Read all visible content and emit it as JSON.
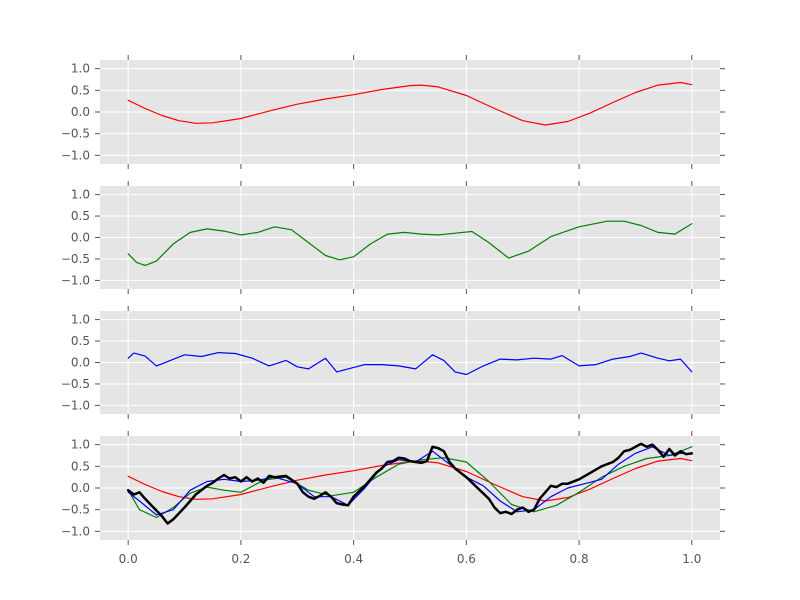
{
  "chart_data": [
    {
      "type": "line",
      "title": "",
      "xlabel": "",
      "ylabel": "",
      "xlim": [
        -0.05,
        1.05
      ],
      "ylim": [
        -1.2,
        1.2
      ],
      "xticks": [
        0.0,
        0.2,
        0.4,
        0.6,
        0.8,
        1.0
      ],
      "yticks": [
        1.0,
        0.5,
        0.0,
        -0.5,
        -1.0
      ],
      "ytick_labels": [
        "1.0",
        "0.5",
        "0.0",
        "−0.5",
        "−1.0"
      ],
      "grid": true,
      "show_xtick_labels": false,
      "series": [
        {
          "color": "#ff0000",
          "x": [
            0.0,
            0.03,
            0.06,
            0.09,
            0.12,
            0.15,
            0.2,
            0.25,
            0.3,
            0.35,
            0.4,
            0.45,
            0.5,
            0.52,
            0.55,
            0.6,
            0.65,
            0.7,
            0.74,
            0.78,
            0.82,
            0.86,
            0.9,
            0.94,
            0.98,
            1.0
          ],
          "y": [
            0.27,
            0.08,
            -0.08,
            -0.2,
            -0.26,
            -0.25,
            -0.15,
            0.02,
            0.18,
            0.3,
            0.4,
            0.52,
            0.61,
            0.62,
            0.58,
            0.38,
            0.08,
            -0.2,
            -0.3,
            -0.22,
            -0.02,
            0.22,
            0.45,
            0.62,
            0.68,
            0.63
          ]
        }
      ]
    },
    {
      "type": "line",
      "title": "",
      "xlabel": "",
      "ylabel": "",
      "xlim": [
        -0.05,
        1.05
      ],
      "ylim": [
        -1.2,
        1.2
      ],
      "xticks": [
        0.0,
        0.2,
        0.4,
        0.6,
        0.8,
        1.0
      ],
      "yticks": [
        1.0,
        0.5,
        0.0,
        -0.5,
        -1.0
      ],
      "ytick_labels": [
        "1.0",
        "0.5",
        "0.0",
        "−0.5",
        "−1.0"
      ],
      "grid": true,
      "show_xtick_labels": false,
      "series": [
        {
          "color": "#008000",
          "x": [
            0.0,
            0.015,
            0.03,
            0.05,
            0.08,
            0.11,
            0.14,
            0.17,
            0.2,
            0.23,
            0.26,
            0.29,
            0.32,
            0.35,
            0.375,
            0.4,
            0.43,
            0.46,
            0.49,
            0.52,
            0.55,
            0.58,
            0.61,
            0.64,
            0.675,
            0.71,
            0.75,
            0.8,
            0.85,
            0.88,
            0.91,
            0.94,
            0.97,
            1.0
          ],
          "y": [
            -0.38,
            -0.58,
            -0.65,
            -0.55,
            -0.15,
            0.12,
            0.2,
            0.15,
            0.06,
            0.12,
            0.25,
            0.18,
            -0.12,
            -0.42,
            -0.52,
            -0.45,
            -0.15,
            0.08,
            0.12,
            0.08,
            0.06,
            0.1,
            0.14,
            -0.12,
            -0.48,
            -0.32,
            0.02,
            0.25,
            0.38,
            0.38,
            0.28,
            0.12,
            0.08,
            0.32
          ]
        }
      ]
    },
    {
      "type": "line",
      "title": "",
      "xlabel": "",
      "ylabel": "",
      "xlim": [
        -0.05,
        1.05
      ],
      "ylim": [
        -1.2,
        1.2
      ],
      "xticks": [
        0.0,
        0.2,
        0.4,
        0.6,
        0.8,
        1.0
      ],
      "yticks": [
        1.0,
        0.5,
        0.0,
        -0.5,
        -1.0
      ],
      "ytick_labels": [
        "1.0",
        "0.5",
        "0.0",
        "−0.5",
        "−1.0"
      ],
      "grid": true,
      "show_xtick_labels": false,
      "series": [
        {
          "color": "#0000ff",
          "x": [
            0.0,
            0.01,
            0.03,
            0.05,
            0.07,
            0.1,
            0.13,
            0.16,
            0.19,
            0.22,
            0.25,
            0.28,
            0.3,
            0.32,
            0.35,
            0.37,
            0.39,
            0.42,
            0.45,
            0.48,
            0.51,
            0.54,
            0.56,
            0.58,
            0.6,
            0.63,
            0.66,
            0.69,
            0.72,
            0.75,
            0.77,
            0.8,
            0.83,
            0.86,
            0.89,
            0.91,
            0.94,
            0.96,
            0.98,
            1.0
          ],
          "y": [
            0.1,
            0.22,
            0.15,
            -0.08,
            0.02,
            0.18,
            0.14,
            0.23,
            0.21,
            0.1,
            -0.08,
            0.05,
            -0.1,
            -0.15,
            0.1,
            -0.22,
            -0.15,
            -0.05,
            -0.05,
            -0.08,
            -0.15,
            0.18,
            0.05,
            -0.22,
            -0.28,
            -0.08,
            0.08,
            0.06,
            0.1,
            0.08,
            0.16,
            -0.08,
            -0.05,
            0.08,
            0.14,
            0.22,
            0.1,
            0.04,
            0.08,
            -0.22
          ]
        }
      ]
    },
    {
      "type": "line",
      "title": "",
      "xlabel": "",
      "ylabel": "",
      "xlim": [
        -0.05,
        1.05
      ],
      "ylim": [
        -1.2,
        1.2
      ],
      "xticks": [
        0.0,
        0.2,
        0.4,
        0.6,
        0.8,
        1.0
      ],
      "xtick_labels": [
        "0.0",
        "0.2",
        "0.4",
        "0.6",
        "0.8",
        "1.0"
      ],
      "yticks": [
        1.0,
        0.5,
        0.0,
        -0.5,
        -1.0
      ],
      "ytick_labels": [
        "1.0",
        "0.5",
        "0.0",
        "−0.5",
        "−1.0"
      ],
      "grid": true,
      "show_xtick_labels": true,
      "series": [
        {
          "color": "#ff0000",
          "x": [
            0.0,
            0.03,
            0.06,
            0.09,
            0.12,
            0.15,
            0.2,
            0.25,
            0.3,
            0.35,
            0.4,
            0.45,
            0.5,
            0.52,
            0.55,
            0.6,
            0.65,
            0.7,
            0.74,
            0.78,
            0.82,
            0.86,
            0.9,
            0.94,
            0.98,
            1.0
          ],
          "y": [
            0.27,
            0.08,
            -0.08,
            -0.2,
            -0.26,
            -0.25,
            -0.15,
            0.02,
            0.18,
            0.3,
            0.4,
            0.52,
            0.61,
            0.62,
            0.58,
            0.38,
            0.08,
            -0.2,
            -0.3,
            -0.22,
            -0.02,
            0.22,
            0.45,
            0.62,
            0.68,
            0.63
          ]
        },
        {
          "color": "#008000",
          "x": [
            0.0,
            0.02,
            0.05,
            0.08,
            0.11,
            0.14,
            0.17,
            0.2,
            0.24,
            0.28,
            0.32,
            0.36,
            0.4,
            0.44,
            0.48,
            0.52,
            0.56,
            0.6,
            0.64,
            0.68,
            0.72,
            0.76,
            0.8,
            0.84,
            0.88,
            0.92,
            0.96,
            1.0
          ],
          "y": [
            -0.05,
            -0.5,
            -0.68,
            -0.45,
            -0.12,
            0.02,
            -0.05,
            -0.1,
            0.18,
            0.25,
            -0.05,
            -0.18,
            -0.1,
            0.25,
            0.55,
            0.65,
            0.7,
            0.6,
            0.15,
            -0.38,
            -0.55,
            -0.4,
            -0.1,
            0.25,
            0.5,
            0.68,
            0.75,
            0.95
          ]
        },
        {
          "color": "#0000ff",
          "x": [
            0.0,
            0.02,
            0.05,
            0.08,
            0.11,
            0.14,
            0.17,
            0.2,
            0.23,
            0.26,
            0.3,
            0.33,
            0.36,
            0.39,
            0.42,
            0.45,
            0.48,
            0.51,
            0.54,
            0.57,
            0.6,
            0.63,
            0.66,
            0.69,
            0.72,
            0.75,
            0.78,
            0.81,
            0.84,
            0.87,
            0.9,
            0.93,
            0.96,
            0.98,
            1.0
          ],
          "y": [
            -0.1,
            -0.3,
            -0.62,
            -0.5,
            -0.05,
            0.15,
            0.2,
            0.15,
            0.18,
            0.25,
            0.1,
            -0.2,
            -0.2,
            -0.4,
            0.0,
            0.48,
            0.65,
            0.6,
            0.85,
            0.55,
            0.25,
            0.05,
            -0.3,
            -0.55,
            -0.5,
            -0.2,
            0.0,
            0.1,
            0.2,
            0.55,
            0.8,
            0.95,
            0.75,
            0.8,
            0.78
          ]
        },
        {
          "color": "#000000",
          "x": [
            0.0,
            0.01,
            0.02,
            0.03,
            0.045,
            0.06,
            0.07,
            0.08,
            0.1,
            0.12,
            0.14,
            0.15,
            0.16,
            0.17,
            0.18,
            0.19,
            0.2,
            0.21,
            0.22,
            0.23,
            0.24,
            0.25,
            0.26,
            0.28,
            0.3,
            0.31,
            0.32,
            0.33,
            0.34,
            0.35,
            0.36,
            0.37,
            0.38,
            0.39,
            0.4,
            0.42,
            0.44,
            0.45,
            0.46,
            0.47,
            0.48,
            0.49,
            0.5,
            0.51,
            0.52,
            0.53,
            0.54,
            0.55,
            0.56,
            0.57,
            0.58,
            0.6,
            0.62,
            0.64,
            0.65,
            0.66,
            0.67,
            0.68,
            0.69,
            0.7,
            0.71,
            0.72,
            0.73,
            0.74,
            0.75,
            0.76,
            0.77,
            0.78,
            0.8,
            0.82,
            0.84,
            0.86,
            0.87,
            0.88,
            0.89,
            0.9,
            0.91,
            0.92,
            0.93,
            0.94,
            0.95,
            0.96,
            0.97,
            0.98,
            0.99,
            1.0
          ],
          "y": [
            -0.05,
            -0.15,
            -0.1,
            -0.25,
            -0.45,
            -0.65,
            -0.82,
            -0.72,
            -0.45,
            -0.15,
            0.05,
            0.12,
            0.22,
            0.3,
            0.22,
            0.25,
            0.15,
            0.25,
            0.15,
            0.22,
            0.12,
            0.28,
            0.25,
            0.28,
            0.1,
            -0.1,
            -0.2,
            -0.25,
            -0.18,
            -0.1,
            -0.2,
            -0.35,
            -0.38,
            -0.4,
            -0.2,
            0.05,
            0.35,
            0.45,
            0.6,
            0.62,
            0.7,
            0.68,
            0.62,
            0.6,
            0.58,
            0.62,
            0.95,
            0.92,
            0.85,
            0.6,
            0.45,
            0.25,
            0.0,
            -0.25,
            -0.45,
            -0.58,
            -0.55,
            -0.6,
            -0.5,
            -0.45,
            -0.55,
            -0.5,
            -0.25,
            -0.1,
            0.05,
            0.02,
            0.1,
            0.1,
            0.2,
            0.35,
            0.5,
            0.6,
            0.7,
            0.85,
            0.88,
            0.95,
            1.02,
            0.95,
            1.0,
            0.88,
            0.72,
            0.9,
            0.75,
            0.85,
            0.78,
            0.8
          ]
        }
      ]
    }
  ]
}
